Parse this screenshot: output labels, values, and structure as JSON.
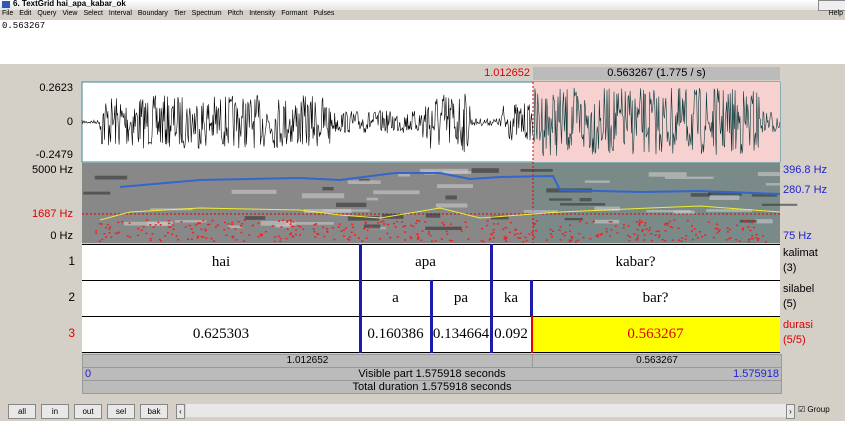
{
  "window": {
    "title": "6. TextGrid hai_apa_kabar_ok",
    "menu": [
      "File",
      "Edit",
      "Query",
      "View",
      "Select",
      "Interval",
      "Boundary",
      "Tier",
      "Spectrum",
      "Pitch",
      "Intensity",
      "Formant",
      "Pulses"
    ],
    "help": "Help"
  },
  "text_field": "0.563267",
  "selection": {
    "start": "1.012652",
    "duration": "0.563267 (1.775 / s)"
  },
  "waveform": {
    "max": "0.2623",
    "zero": "0",
    "min": "-0.2479"
  },
  "spectrogram": {
    "top": "5000 Hz",
    "cursor": "1687 Hz",
    "bottom": "0 Hz",
    "pitch_top": "396.8 Hz",
    "pitch_cursor": "280.7 Hz",
    "pitch_bottom": "75 Hz"
  },
  "tiers": [
    {
      "number": "1",
      "name": "kalimat",
      "count": "(3)",
      "intervals": [
        "hai",
        "apa",
        "kabar?"
      ]
    },
    {
      "number": "2",
      "name": "silabel",
      "count": "(5)",
      "intervals": [
        "a",
        "pa",
        "ka",
        "bar?"
      ]
    },
    {
      "number": "3",
      "name": "durasi",
      "count": "(5/5)",
      "intervals": [
        "0.625303",
        "0.160386",
        "0.134664",
        "0.092",
        "0.563267"
      ]
    }
  ],
  "bottom": {
    "left_duration": "1.012652",
    "right_duration": "0.563267",
    "visible_start": "0",
    "visible_part": "Visible part 1.575918 seconds",
    "visible_end": "1.575918",
    "total": "Total duration 1.575918 seconds"
  },
  "buttons": [
    "all",
    "in",
    "out",
    "sel",
    "bak"
  ],
  "group": "Group"
}
